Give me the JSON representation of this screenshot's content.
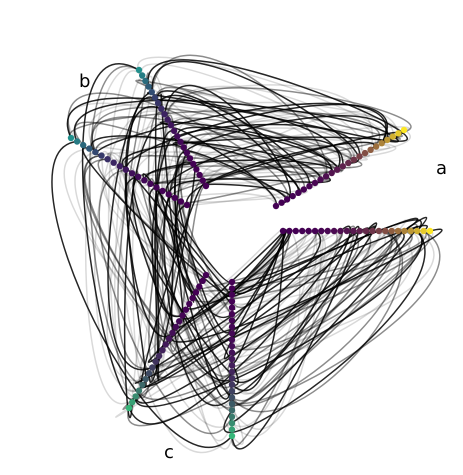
{
  "chart_data": {
    "type": "hive",
    "title": "",
    "axes": [
      {
        "name": "a",
        "label": "a",
        "angle_deg": 18,
        "color_start": "#440154",
        "color_end": "#fde725"
      },
      {
        "name": "b",
        "label": "b",
        "angle_deg": 138,
        "color_start": "#440154",
        "color_end": "#21908c"
      },
      {
        "name": "c",
        "label": "c",
        "angle_deg": 258,
        "color_start": "#440154",
        "color_end": "#35b779"
      }
    ],
    "grid": false,
    "legend": "none",
    "edge_color": "#000000"
  }
}
